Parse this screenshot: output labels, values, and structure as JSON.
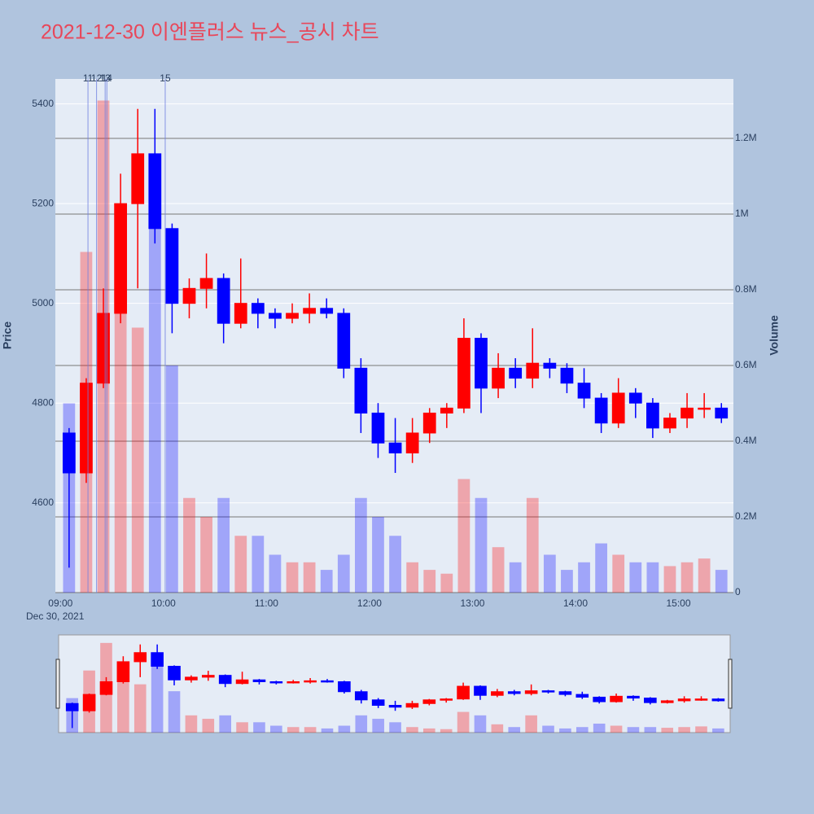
{
  "chart_data": {
    "type": "candlestick",
    "title": "2021-12-30 이엔플러스 뉴스_공시 차트",
    "y_label": "Price",
    "y2_label": "Volume",
    "x_sublabel": "Dec 30, 2021",
    "x": [
      "09:00",
      "09:10",
      "09:20",
      "09:30",
      "09:40",
      "09:50",
      "10:00",
      "10:10",
      "10:20",
      "10:30",
      "10:40",
      "10:50",
      "11:00",
      "11:10",
      "11:20",
      "11:30",
      "11:40",
      "11:50",
      "12:00",
      "12:10",
      "12:20",
      "12:30",
      "12:40",
      "12:50",
      "13:00",
      "13:10",
      "13:20",
      "13:30",
      "13:40",
      "13:50",
      "14:00",
      "14:10",
      "14:20",
      "14:30",
      "14:40",
      "14:50",
      "15:00",
      "15:10",
      "15:20"
    ],
    "open": [
      4740,
      4660,
      4840,
      4980,
      5200,
      5300,
      5150,
      5000,
      5030,
      5050,
      4960,
      5000,
      4980,
      4970,
      4980,
      4990,
      4980,
      4870,
      4780,
      4720,
      4700,
      4740,
      4780,
      4790,
      4930,
      4830,
      4870,
      4850,
      4880,
      4870,
      4840,
      4810,
      4760,
      4820,
      4800,
      4750,
      4770,
      4790,
      4790
    ],
    "high": [
      4750,
      4850,
      5030,
      5260,
      5390,
      5390,
      5160,
      5050,
      5100,
      5060,
      5090,
      5010,
      4990,
      5000,
      5020,
      5010,
      4990,
      4890,
      4800,
      4770,
      4770,
      4790,
      4800,
      4970,
      4940,
      4900,
      4890,
      4950,
      4890,
      4880,
      4870,
      4820,
      4850,
      4830,
      4810,
      4780,
      4820,
      4820,
      4800
    ],
    "low": [
      4470,
      4640,
      4830,
      4960,
      5030,
      5120,
      4940,
      4970,
      4990,
      4920,
      4950,
      4950,
      4950,
      4960,
      4960,
      4970,
      4850,
      4740,
      4690,
      4660,
      4680,
      4720,
      4750,
      4780,
      4780,
      4810,
      4830,
      4830,
      4850,
      4820,
      4790,
      4740,
      4750,
      4770,
      4730,
      4740,
      4750,
      4770,
      4760
    ],
    "close": [
      4660,
      4840,
      4980,
      5200,
      5300,
      5150,
      5000,
      5030,
      5050,
      4960,
      5000,
      4980,
      4970,
      4980,
      4990,
      4980,
      4870,
      4780,
      4720,
      4700,
      4740,
      4780,
      4790,
      4930,
      4830,
      4870,
      4850,
      4880,
      4870,
      4840,
      4810,
      4760,
      4820,
      4800,
      4750,
      4770,
      4790,
      4790,
      4770
    ],
    "volume": [
      500000,
      900000,
      1300000,
      800000,
      700000,
      1000000,
      600000,
      250000,
      200000,
      250000,
      150000,
      150000,
      100000,
      80000,
      80000,
      60000,
      100000,
      250000,
      200000,
      150000,
      80000,
      60000,
      50000,
      300000,
      250000,
      120000,
      80000,
      250000,
      100000,
      60000,
      80000,
      130000,
      100000,
      80000,
      80000,
      70000,
      80000,
      90000,
      60000
    ],
    "increasing_color": "#ff0000",
    "decreasing_color": "#0000ff",
    "xlim": [
      "08:57",
      "15:32"
    ],
    "xticks": [
      "09:00",
      "10:00",
      "11:00",
      "12:00",
      "13:00",
      "14:00",
      "15:00"
    ],
    "ylim": [
      4420,
      5450
    ],
    "yticks": [
      4600,
      4800,
      5000,
      5200,
      5400
    ],
    "y2lim": [
      0,
      1357000
    ],
    "y2ticks": [
      0,
      {
        "value": 200000,
        "label": "0.2M"
      },
      {
        "value": 400000,
        "label": "0.4M"
      },
      {
        "value": 600000,
        "label": "0.6M"
      },
      {
        "value": 800000,
        "label": "0.8M"
      },
      {
        "value": 1000000,
        "label": "1M"
      },
      {
        "value": 1200000,
        "label": "1.2M"
      }
    ],
    "annotations": [
      {
        "x": "09:16",
        "label": "11"
      },
      {
        "x": "09:21",
        "label": "12"
      },
      {
        "x": "09:26",
        "label": "13"
      },
      {
        "x": "09:27",
        "label": "14"
      },
      {
        "x": "10:01",
        "label": "15"
      }
    ],
    "rangeslider": true
  }
}
